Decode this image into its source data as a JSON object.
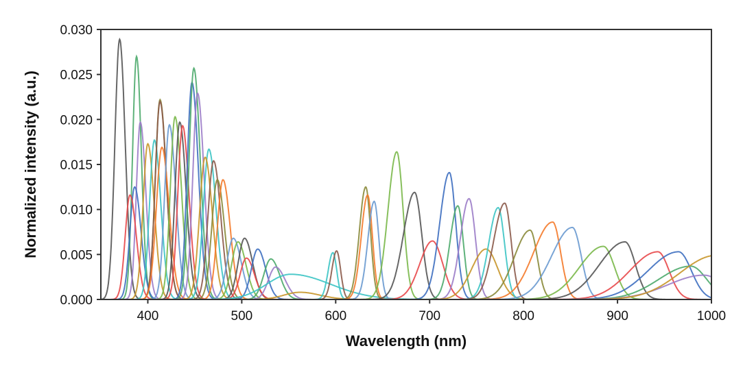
{
  "chart_data": {
    "type": "line",
    "title": "",
    "xlabel": "Wavelength (nm)",
    "ylabel": "Normalized intensity (a.u.)",
    "xlim": [
      350,
      1000
    ],
    "ylim": [
      0,
      0.03
    ],
    "xticks": [
      400,
      500,
      600,
      700,
      800,
      900,
      1000
    ],
    "xtick_labels": [
      "400",
      "500",
      "600",
      "700",
      "800",
      "900",
      "1000"
    ],
    "yticks": [
      0,
      0.005,
      0.01,
      0.015,
      0.02,
      0.025,
      0.03
    ],
    "ytick_labels": [
      "0.000",
      "0.005",
      "0.010",
      "0.015",
      "0.020",
      "0.025",
      "0.030"
    ],
    "grid": false,
    "legend": "none",
    "series_note": "peak wavelength (nm), peak intensity, left/right half-widths (nm)",
    "series": [
      {
        "peak": 370,
        "value": 0.0289,
        "width": [
          6,
          7
        ],
        "color": "#555555"
      },
      {
        "peak": 388,
        "value": 0.027,
        "width": [
          5,
          6
        ],
        "color": "#4daa6c"
      },
      {
        "peak": 392,
        "value": 0.0197,
        "width": [
          5,
          7
        ],
        "color": "#9b7cc8"
      },
      {
        "peak": 386,
        "value": 0.0125,
        "width": [
          6,
          8
        ],
        "color": "#3e6fc0"
      },
      {
        "peak": 381,
        "value": 0.0116,
        "width": [
          6,
          8
        ],
        "color": "#e8484a"
      },
      {
        "peak": 400,
        "value": 0.0173,
        "width": [
          6,
          8
        ],
        "color": "#c8962a"
      },
      {
        "peak": 407,
        "value": 0.0177,
        "width": [
          6,
          8
        ],
        "color": "#3cc4c4"
      },
      {
        "peak": 413,
        "value": 0.0222,
        "width": [
          6,
          8
        ],
        "color": "#8a8a3a"
      },
      {
        "peak": 413,
        "value": 0.022,
        "width": [
          6,
          8
        ],
        "color": "#8b5a4a"
      },
      {
        "peak": 415,
        "value": 0.0169,
        "width": [
          7,
          9
        ],
        "color": "#f47a2a"
      },
      {
        "peak": 423,
        "value": 0.0194,
        "width": [
          6,
          8
        ],
        "color": "#6a9ad0"
      },
      {
        "peak": 429,
        "value": 0.0203,
        "width": [
          6,
          8
        ],
        "color": "#7ab84a"
      },
      {
        "peak": 434,
        "value": 0.0197,
        "width": [
          6,
          8
        ],
        "color": "#555555"
      },
      {
        "peak": 437,
        "value": 0.0193,
        "width": [
          6,
          8
        ],
        "color": "#e8484a"
      },
      {
        "peak": 447,
        "value": 0.0241,
        "width": [
          6,
          8
        ],
        "color": "#3e6fc0"
      },
      {
        "peak": 449,
        "value": 0.0257,
        "width": [
          6,
          8
        ],
        "color": "#4daa6c"
      },
      {
        "peak": 453,
        "value": 0.0229,
        "width": [
          6,
          8
        ],
        "color": "#9b7cc8"
      },
      {
        "peak": 465,
        "value": 0.0167,
        "width": [
          7,
          9
        ],
        "color": "#3cc4c4"
      },
      {
        "peak": 461,
        "value": 0.0158,
        "width": [
          7,
          9
        ],
        "color": "#c8962a"
      },
      {
        "peak": 470,
        "value": 0.0154,
        "width": [
          7,
          9
        ],
        "color": "#8b5a4a"
      },
      {
        "peak": 474,
        "value": 0.0133,
        "width": [
          7,
          9
        ],
        "color": "#8a8a3a"
      },
      {
        "peak": 480,
        "value": 0.0133,
        "width": [
          7,
          9
        ],
        "color": "#f47a2a"
      },
      {
        "peak": 491,
        "value": 0.0068,
        "width": [
          8,
          10
        ],
        "color": "#6a9ad0"
      },
      {
        "peak": 496,
        "value": 0.0064,
        "width": [
          8,
          10
        ],
        "color": "#7ab84a"
      },
      {
        "peak": 503,
        "value": 0.0068,
        "width": [
          8,
          10
        ],
        "color": "#555555"
      },
      {
        "peak": 505,
        "value": 0.0046,
        "width": [
          8,
          10
        ],
        "color": "#e8484a"
      },
      {
        "peak": 517,
        "value": 0.0056,
        "width": [
          8,
          10
        ],
        "color": "#3e6fc0"
      },
      {
        "peak": 531,
        "value": 0.0045,
        "width": [
          9,
          11
        ],
        "color": "#4daa6c"
      },
      {
        "peak": 536,
        "value": 0.0036,
        "width": [
          9,
          12
        ],
        "color": "#9b7cc8"
      },
      {
        "peak": 552,
        "value": 0.0028,
        "width": [
          30,
          50
        ],
        "color": "#3cc4c4"
      },
      {
        "peak": 562,
        "value": 0.0008,
        "width": [
          20,
          25
        ],
        "color": "#c8962a"
      },
      {
        "peak": 597,
        "value": 0.0052,
        "width": [
          6,
          5
        ],
        "color": "#3cc4c4"
      },
      {
        "peak": 601,
        "value": 0.0054,
        "width": [
          6,
          5
        ],
        "color": "#8b5a4a"
      },
      {
        "peak": 632,
        "value": 0.0125,
        "width": [
          8,
          6
        ],
        "color": "#8a8a3a"
      },
      {
        "peak": 634,
        "value": 0.0116,
        "width": [
          8,
          6
        ],
        "color": "#f47a2a"
      },
      {
        "peak": 641,
        "value": 0.0109,
        "width": [
          8,
          6
        ],
        "color": "#6a9ad0"
      },
      {
        "peak": 665,
        "value": 0.0164,
        "width": [
          11,
          8
        ],
        "color": "#7ab84a"
      },
      {
        "peak": 684,
        "value": 0.0119,
        "width": [
          14,
          9
        ],
        "color": "#555555"
      },
      {
        "peak": 703,
        "value": 0.0065,
        "width": [
          16,
          13
        ],
        "color": "#e8484a"
      },
      {
        "peak": 721,
        "value": 0.0141,
        "width": [
          12,
          8
        ],
        "color": "#3e6fc0"
      },
      {
        "peak": 730,
        "value": 0.0104,
        "width": [
          10,
          7
        ],
        "color": "#4daa6c"
      },
      {
        "peak": 742,
        "value": 0.0112,
        "width": [
          11,
          8
        ],
        "color": "#9b7cc8"
      },
      {
        "peak": 760,
        "value": 0.0056,
        "width": [
          18,
          15
        ],
        "color": "#c8962a"
      },
      {
        "peak": 773,
        "value": 0.0102,
        "width": [
          12,
          8
        ],
        "color": "#3cc4c4"
      },
      {
        "peak": 780,
        "value": 0.0107,
        "width": [
          14,
          8
        ],
        "color": "#8b5a4a"
      },
      {
        "peak": 807,
        "value": 0.0077,
        "width": [
          20,
          9
        ],
        "color": "#8a8a3a"
      },
      {
        "peak": 831,
        "value": 0.0086,
        "width": [
          24,
          10
        ],
        "color": "#f47a2a"
      },
      {
        "peak": 852,
        "value": 0.008,
        "width": [
          26,
          11
        ],
        "color": "#6a9ad0"
      },
      {
        "peak": 885,
        "value": 0.0059,
        "width": [
          30,
          14
        ],
        "color": "#7ab84a"
      },
      {
        "peak": 908,
        "value": 0.0064,
        "width": [
          32,
          13
        ],
        "color": "#555555"
      },
      {
        "peak": 943,
        "value": 0.0053,
        "width": [
          35,
          14
        ],
        "color": "#e8484a"
      },
      {
        "peak": 965,
        "value": 0.0053,
        "width": [
          38,
          16
        ],
        "color": "#3e6fc0"
      },
      {
        "peak": 978,
        "value": 0.0037,
        "width": [
          40,
          20
        ],
        "color": "#4daa6c"
      },
      {
        "peak": 992,
        "value": 0.0027,
        "width": [
          45,
          25
        ],
        "color": "#9b7cc8"
      },
      {
        "peak": 1005,
        "value": 0.0049,
        "width": [
          45,
          25
        ],
        "color": "#c8962a"
      }
    ]
  }
}
